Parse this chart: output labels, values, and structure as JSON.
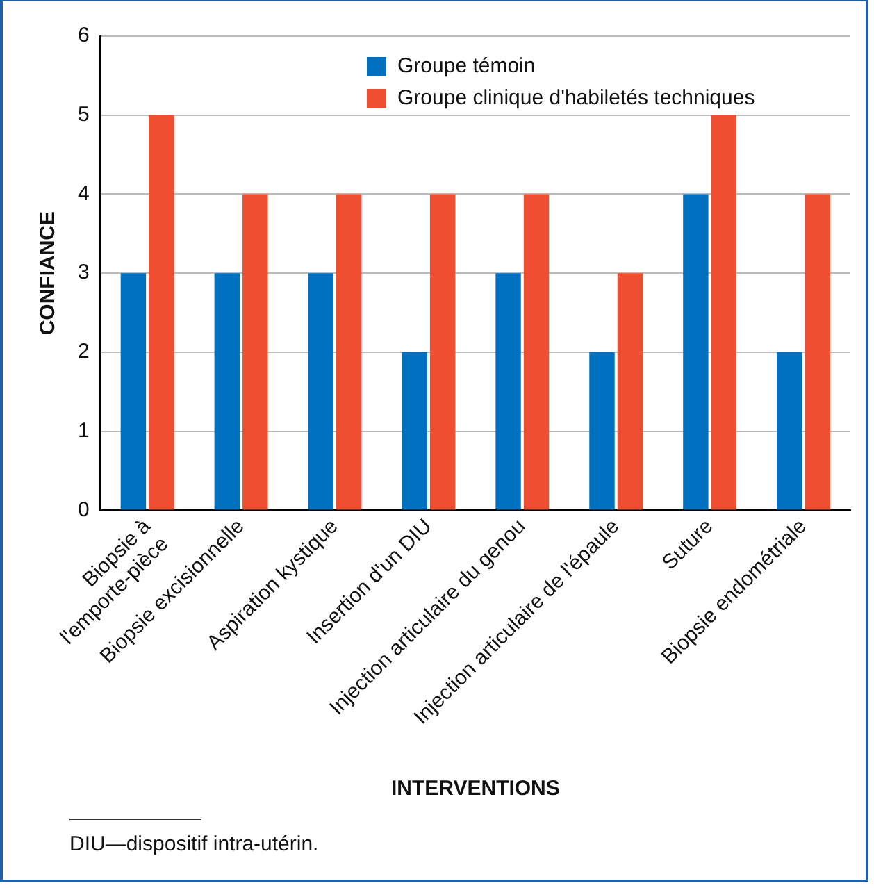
{
  "chart_data": {
    "type": "bar",
    "xlabel": "INTERVENTIONS",
    "ylabel": "CONFIANCE",
    "categories": [
      "Biopsie à\nl'emporte-pièce",
      "Biopsie excisionnelle",
      "Aspiration kystique",
      "Insertion d'un DIU",
      "Injection articulaire du genou",
      "Injection articulaire de l'épaule",
      "Suture",
      "Biopsie endométriale"
    ],
    "series": [
      {
        "name": "Groupe témoin",
        "color": "#0070c0",
        "values": [
          3,
          3,
          3,
          2,
          3,
          2,
          4,
          2
        ]
      },
      {
        "name": "Groupe clinique d'habiletés techniques",
        "color": "#f04e30",
        "values": [
          5,
          4,
          4,
          4,
          4,
          3,
          5,
          4
        ]
      }
    ],
    "ylim": [
      0,
      6
    ],
    "yticks": [
      0,
      1,
      2,
      3,
      4,
      5,
      6
    ],
    "grid": "y",
    "legend": "top right",
    "annotations": [
      "DIU—dispositif intra-utérin."
    ]
  }
}
